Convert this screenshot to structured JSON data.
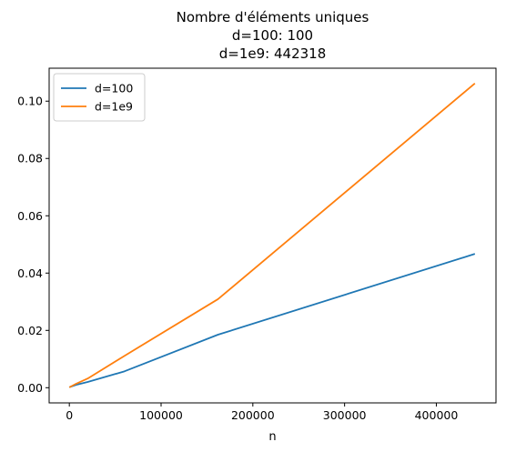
{
  "chart_data": {
    "type": "line",
    "title_lines": [
      "Nombre d'éléments uniques",
      "d=100: 100",
      "d=1e9: 442318"
    ],
    "xlabel": "n",
    "ylabel": "",
    "xlim": [
      -22000,
      465000
    ],
    "ylim": [
      -0.0053,
      0.1115
    ],
    "xticks": [
      0,
      100000,
      200000,
      300000,
      400000
    ],
    "xtick_labels": [
      "0",
      "100000",
      "200000",
      "300000",
      "400000"
    ],
    "yticks": [
      0.0,
      0.02,
      0.04,
      0.06,
      0.08,
      0.1
    ],
    "ytick_labels": [
      "0.00",
      "0.02",
      "0.04",
      "0.06",
      "0.08",
      "0.10"
    ],
    "grid": false,
    "legend_position": "top-left",
    "series": [
      {
        "name": "d=100",
        "color": "#1f77b4",
        "x": [
          100,
          1000,
          7500,
          20000,
          60000,
          162000,
          442000
        ],
        "y": [
          0.0001,
          0.0003,
          0.001,
          0.002,
          0.0057,
          0.0185,
          0.0467
        ]
      },
      {
        "name": "d=1e9",
        "color": "#ff7f0e",
        "x": [
          100,
          1000,
          7500,
          20000,
          60000,
          162000,
          442000
        ],
        "y": [
          0.0001,
          0.0003,
          0.0014,
          0.0032,
          0.0111,
          0.0309,
          0.1062
        ]
      }
    ]
  }
}
